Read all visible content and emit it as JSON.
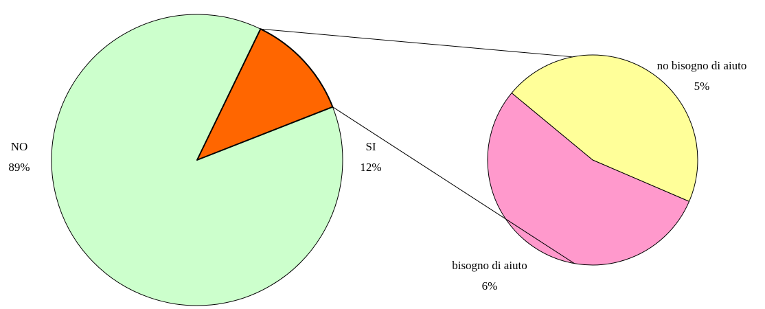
{
  "chart_data": [
    {
      "type": "pie",
      "categories": [
        "NO",
        "SI"
      ],
      "values": [
        89,
        12
      ],
      "value_labels": [
        "89%",
        "12%"
      ],
      "colors": [
        "#ccffcc",
        "#ff6600"
      ]
    },
    {
      "type": "pie",
      "categories": [
        "no bisogno di aiuto",
        "bisogno di aiuto"
      ],
      "values": [
        5,
        6
      ],
      "value_labels": [
        "5%",
        "6%"
      ],
      "colors": [
        "#ffff99",
        "#ff99cc"
      ]
    }
  ]
}
